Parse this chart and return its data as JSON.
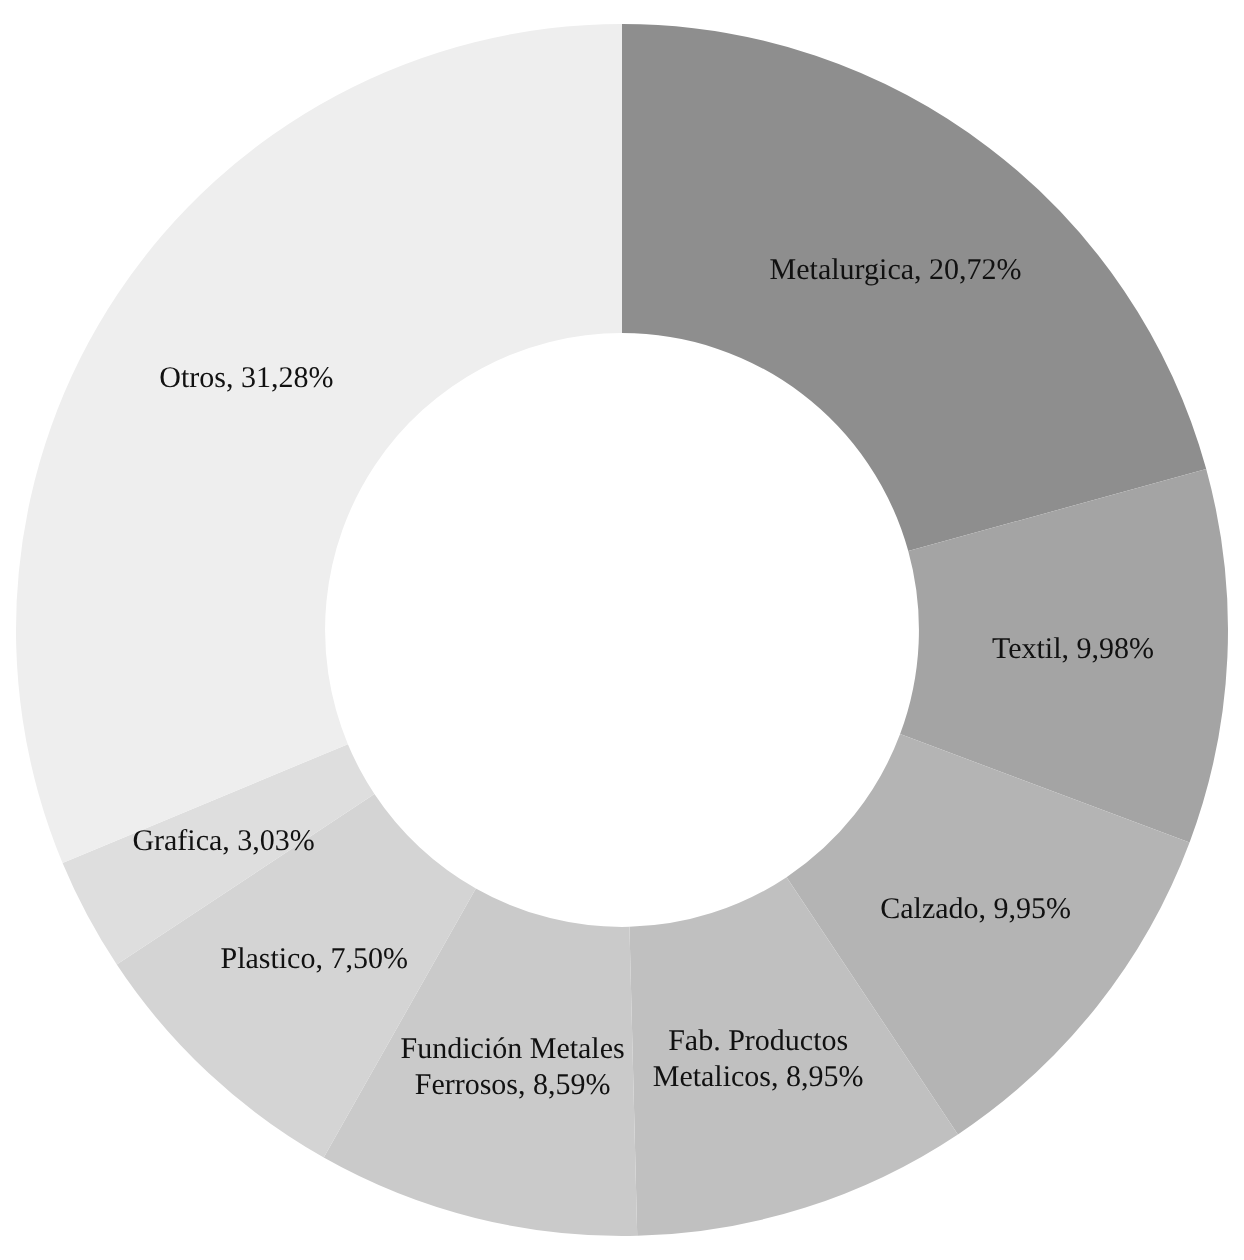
{
  "chart_data": {
    "type": "donut",
    "categories": [
      "Metalurgica",
      "Textil",
      "Calzado",
      "Fab. Productos Metalicos",
      "Fundición Metales Ferrosos",
      "Plastico",
      "Grafica",
      "Otros"
    ],
    "values": [
      20.72,
      9.98,
      9.95,
      8.95,
      8.59,
      7.5,
      3.03,
      31.28
    ],
    "value_labels": [
      "20,72%",
      "9,98%",
      "9,95%",
      "8,95%",
      "8,59%",
      "7,50%",
      "3,03%",
      "31,28%"
    ],
    "colors": [
      "#8e8e8e",
      "#a4a4a4",
      "#b4b4b4",
      "#c0c0c0",
      "#cacaca",
      "#d4d4d4",
      "#dedede",
      "#eeeeee"
    ],
    "legend": false
  }
}
